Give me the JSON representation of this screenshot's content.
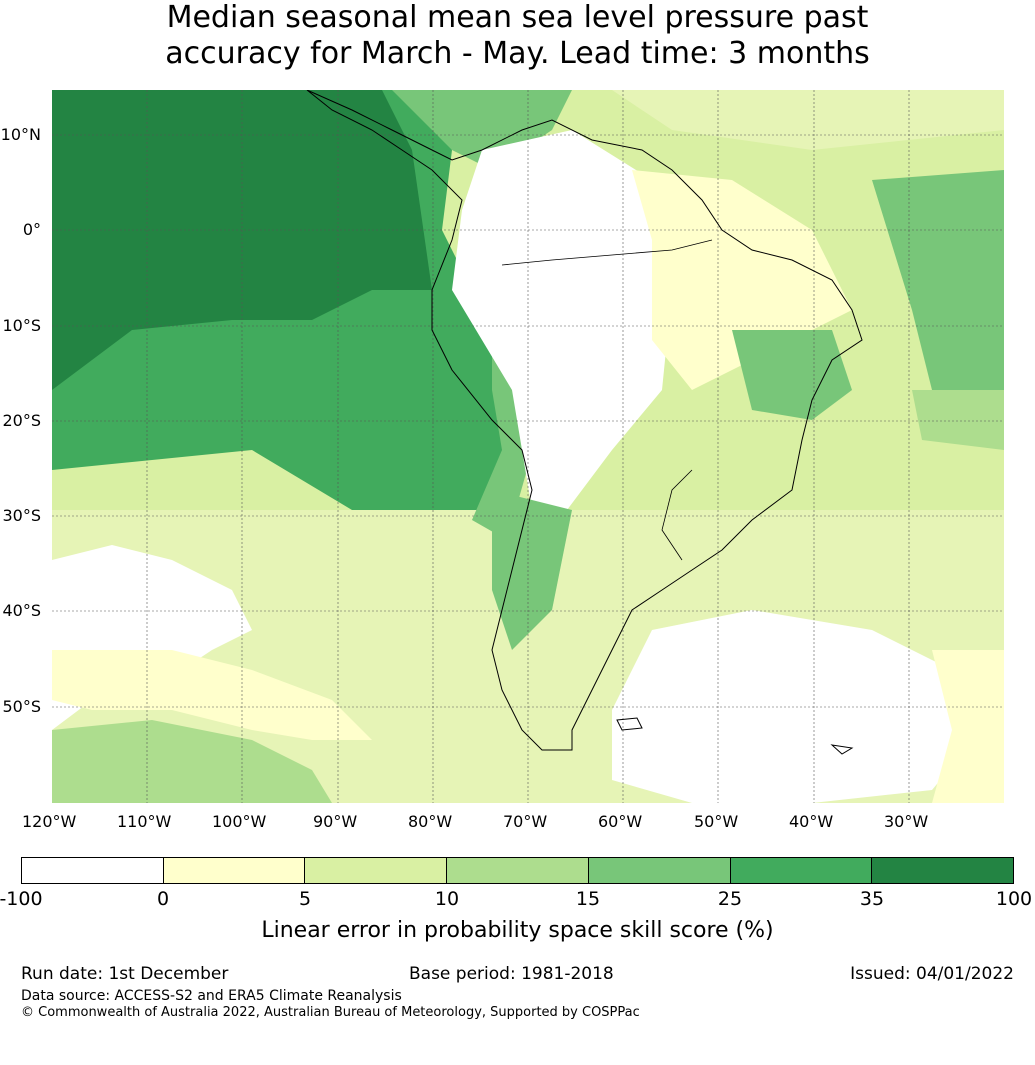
{
  "title": {
    "line1": "Median seasonal mean sea level pressure past",
    "line2": "accuracy for March - May. Lead time: 3 months"
  },
  "map": {
    "lat_ticks": [
      "10°N",
      "0°",
      "10°S",
      "20°S",
      "30°S",
      "40°S",
      "50°S"
    ],
    "lon_ticks": [
      "120°W",
      "110°W",
      "100°W",
      "90°W",
      "80°W",
      "70°W",
      "60°W",
      "50°W",
      "40°W",
      "30°W"
    ],
    "extent": {
      "lon": [
        -120,
        -20
      ],
      "lat": [
        -60,
        15
      ]
    }
  },
  "colorbar": {
    "labels": [
      "-100",
      "0",
      "5",
      "10",
      "15",
      "25",
      "35",
      "100"
    ],
    "colors": [
      "#ffffff",
      "#ffffcc",
      "#d9f0a3",
      "#addd8e",
      "#78c679",
      "#41ab5d",
      "#238443"
    ],
    "title": "Linear error in probability space skill score (%)"
  },
  "footer": {
    "run_date": "Run date: 1st December",
    "base_period": "Base period: 1981-2018",
    "issued": "Issued: 04/01/2022",
    "data_source": "Data source: ACCESS-S2 and ERA5 Climate Reanalysis",
    "copyright": "© Commonwealth of Australia 2022, Australian Bureau of Meteorology, Supported by COSPPac"
  }
}
